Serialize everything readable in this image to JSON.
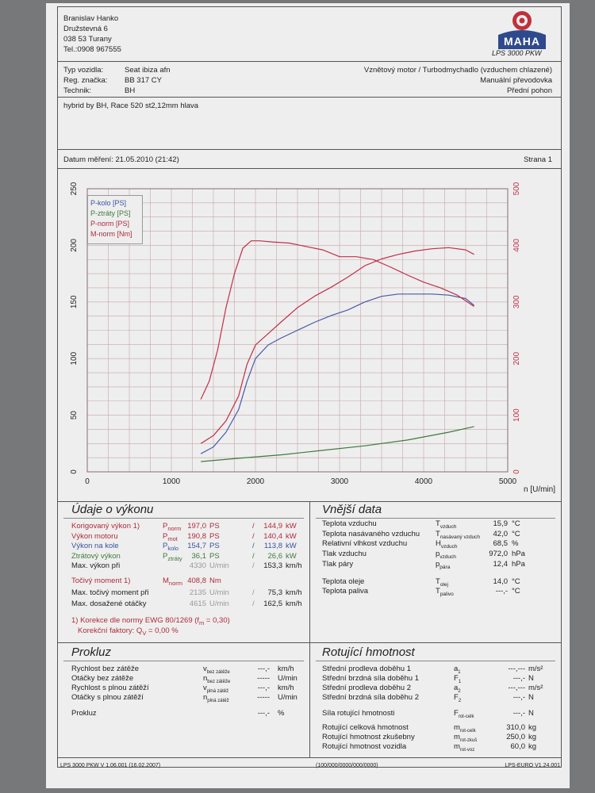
{
  "header": {
    "owner_name": "Branislav Hanko",
    "street": "Družstevná 6",
    "city": "038 53 Turany",
    "phone": "Tel.:0908 967555",
    "logo_text": "MAHA",
    "model": "LPS 3000 PKW"
  },
  "vehicle": {
    "type_label": "Typ vozidla:",
    "type_value": "Seat ibiza afn",
    "reg_label": "Reg. značka:",
    "reg_value": "BB 317 CY",
    "tech_label": "Technik:",
    "tech_value": "BH",
    "engine": "Vznětový motor / Turbodmychadlo (vzduchem chlazené)",
    "gearbox": "Manuální převodovka",
    "drive": "Přední pohon",
    "note": "hybrid by BH, Race 520 st2,12mm hlava"
  },
  "measurement": {
    "date_text": "Datum měření: 21.05.2010 (21:42)",
    "page_text": "Strana 1"
  },
  "chart_data": {
    "type": "line",
    "xlabel": "n [U/min]",
    "xlim": [
      0,
      5000
    ],
    "x_ticks": [
      "0",
      "1000",
      "2000",
      "3000",
      "4000",
      "5000"
    ],
    "ylim_left": [
      0,
      250
    ],
    "y_ticks_left": [
      "0",
      "50",
      "100",
      "150",
      "200",
      "250"
    ],
    "ylim_right": [
      0,
      500
    ],
    "y_ticks_right": [
      "0",
      "100",
      "200",
      "300",
      "400",
      "500"
    ],
    "legend_position": "top-left",
    "grid": true,
    "series": [
      {
        "name": "P-kolo [PS]",
        "color": "#4858a8",
        "axis": "left",
        "x": [
          1350,
          1500,
          1650,
          1800,
          1900,
          2000,
          2150,
          2300,
          2500,
          2700,
          2900,
          3100,
          3300,
          3500,
          3700,
          3900,
          4100,
          4300,
          4500,
          4600
        ],
        "y": [
          16,
          22,
          35,
          55,
          80,
          100,
          112,
          118,
          125,
          132,
          138,
          143,
          150,
          155,
          157,
          157,
          157,
          156,
          153,
          147
        ]
      },
      {
        "name": "P-ztráty [PS]",
        "color": "#3d7a3d",
        "axis": "left",
        "x": [
          1350,
          1800,
          2300,
          2800,
          3300,
          3800,
          4300,
          4600
        ],
        "y": [
          9,
          12,
          15,
          19,
          23,
          28,
          35,
          40
        ]
      },
      {
        "name": "P-norm [PS]",
        "color": "#c0304a",
        "axis": "left",
        "x": [
          1350,
          1500,
          1650,
          1800,
          1900,
          2000,
          2150,
          2300,
          2500,
          2700,
          2900,
          3100,
          3300,
          3500,
          3700,
          3900,
          4100,
          4300,
          4500,
          4600
        ],
        "y": [
          25,
          32,
          45,
          67,
          95,
          112,
          122,
          132,
          145,
          155,
          163,
          172,
          182,
          188,
          192,
          195,
          197,
          198,
          196,
          192
        ]
      },
      {
        "name": "M-norm [Nm]",
        "color": "#c0304a",
        "axis": "right",
        "x": [
          1350,
          1450,
          1550,
          1650,
          1750,
          1850,
          1950,
          2050,
          2200,
          2400,
          2600,
          2800,
          3000,
          3200,
          3400,
          3600,
          3800,
          4000,
          4200,
          4400,
          4600
        ],
        "y": [
          128,
          160,
          215,
          290,
          350,
          395,
          408,
          408,
          406,
          404,
          398,
          392,
          380,
          380,
          375,
          362,
          348,
          335,
          325,
          312,
          292
        ]
      }
    ]
  },
  "performance": {
    "title": "Údaje o výkonu",
    "rows": [
      {
        "label": "Korigovaný výkon 1)",
        "sym": "P",
        "sub": "norm",
        "v1": "197,0",
        "u1": "PS",
        "sep": "/",
        "v2": "144,9",
        "u2": "kW",
        "cls": "red"
      },
      {
        "label": "Výkon motoru",
        "sym": "P",
        "sub": "mot",
        "v1": "190,8",
        "u1": "PS",
        "sep": "/",
        "v2": "140,4",
        "u2": "kW",
        "cls": "red"
      },
      {
        "label": "Výkon na kole",
        "sym": "P",
        "sub": "kolo",
        "v1": "154,7",
        "u1": "PS",
        "sep": "/",
        "v2": "113,8",
        "u2": "kW",
        "cls": "blue"
      },
      {
        "label": "Ztrátový výkon",
        "sym": "P",
        "sub": "ztráty",
        "v1": "36,1",
        "u1": "PS",
        "sep": "/",
        "v2": "26,6",
        "u2": "kW",
        "cls": "green"
      },
      {
        "label": "Max. výkon při",
        "sym": "",
        "sub": "",
        "v1": "4330",
        "u1": "U/min",
        "sep": "/",
        "v2": "153,3",
        "u2": "km/h",
        "cls": ""
      }
    ],
    "torque_rows": [
      {
        "label": "Točivý moment 1)",
        "sym": "M",
        "sub": "norm",
        "v1": "408,8",
        "u1": "Nm",
        "sep": "",
        "v2": "",
        "u2": "",
        "cls": "red"
      },
      {
        "label": "Max. točivý moment při",
        "sym": "",
        "sub": "",
        "v1": "2135",
        "u1": "U/min",
        "sep": "/",
        "v2": "75,3",
        "u2": "km/h",
        "cls": ""
      },
      {
        "label": "Max. dosažené otáčky",
        "sym": "",
        "sub": "",
        "v1": "4615",
        "u1": "U/min",
        "sep": "/",
        "v2": "162,5",
        "u2": "km/h",
        "cls": ""
      }
    ],
    "footnote1": "1) Korekce dle normy EWG 80/1269 (f",
    "footnote1_sub": "m",
    "footnote1_end": " = 0,30)",
    "footnote2": "Korekční faktory: Q",
    "footnote2_sub": "V",
    "footnote2_end": " = 0,00 %"
  },
  "external": {
    "title": "Vnější data",
    "rows": [
      {
        "label": "Teplota vzduchu",
        "sym": "T",
        "sub": "vzduch",
        "val": "15,9",
        "unit": "°C"
      },
      {
        "label": "Teplota nasávaného vzduchu",
        "sym": "T",
        "sub": "nasávaný vzduch",
        "val": "42,0",
        "unit": "°C"
      },
      {
        "label": "Relativní vlhkost vzduchu",
        "sym": "H",
        "sub": "vzduch",
        "val": "68,5",
        "unit": "%"
      },
      {
        "label": "Tlak vzduchu",
        "sym": "p",
        "sub": "vzduch",
        "val": "972,0",
        "unit": "hPa"
      },
      {
        "label": "Tlak páry",
        "sym": "p",
        "sub": "pára",
        "val": "12,4",
        "unit": "hPa"
      },
      {
        "label": "Teplota oleje",
        "sym": "T",
        "sub": "olej",
        "val": "14,0",
        "unit": "°C"
      },
      {
        "label": "Teplota paliva",
        "sym": "T",
        "sub": "palivo",
        "val": "---,-",
        "unit": "°C"
      }
    ]
  },
  "coast": {
    "title": "Prokluz",
    "rows": [
      {
        "label": "Rychlost bez zátěže",
        "sym": "v",
        "sub": "bez zátěže",
        "val": "---,-",
        "unit": "km/h"
      },
      {
        "label": "Otáčky bez zátěže",
        "sym": "n",
        "sub": "bez zátěže",
        "val": "-----",
        "unit": "U/min"
      },
      {
        "label": "Rychlost s plnou zátěží",
        "sym": "v",
        "sub": "plná zátěž",
        "val": "---,-",
        "unit": "km/h"
      },
      {
        "label": "Otáčky s plnou zátěží",
        "sym": "n",
        "sub": "plná zátěž",
        "val": "-----",
        "unit": "U/min"
      },
      {
        "label": "Prokluz",
        "sym": "",
        "sub": "",
        "val": "---,-",
        "unit": "%"
      }
    ]
  },
  "rotating": {
    "title": "Rotující hmotnost",
    "rows": [
      {
        "label": "Střední prodleva doběhu 1",
        "sym": "a",
        "sub": "1",
        "val": "---,---",
        "unit": "m/s²"
      },
      {
        "label": "Střední brzdná síla doběhu 1",
        "sym": "F",
        "sub": "1",
        "val": "---,-",
        "unit": "N"
      },
      {
        "label": "Střední prodleva doběhu 2",
        "sym": "a",
        "sub": "2",
        "val": "---,---",
        "unit": "m/s²"
      },
      {
        "label": "Střední brzdná síla doběhu 2",
        "sym": "F",
        "sub": "2",
        "val": "---,-",
        "unit": "N"
      },
      {
        "label": "Síla rotující hmotnosti",
        "sym": "F",
        "sub": "rot-celk",
        "val": "---,-",
        "unit": "N"
      },
      {
        "label": "Rotující celková hmotnost",
        "sym": "m",
        "sub": "rot-celk",
        "val": "310,0",
        "unit": "kg"
      },
      {
        "label": "Rotující hmotnost zkušebny",
        "sym": "m",
        "sub": "rot-zkuš",
        "val": "250,0",
        "unit": "kg"
      },
      {
        "label": "Rotující hmotnost vozidla",
        "sym": "m",
        "sub": "rot-voz",
        "val": "60,0",
        "unit": "kg"
      }
    ]
  },
  "footer": {
    "left": "LPS 3000 PKW V 1.06.001 (16.02.2007)",
    "center": "(100/000/0000/000/0000)",
    "right": "LPS-EURO V1.24.001"
  }
}
